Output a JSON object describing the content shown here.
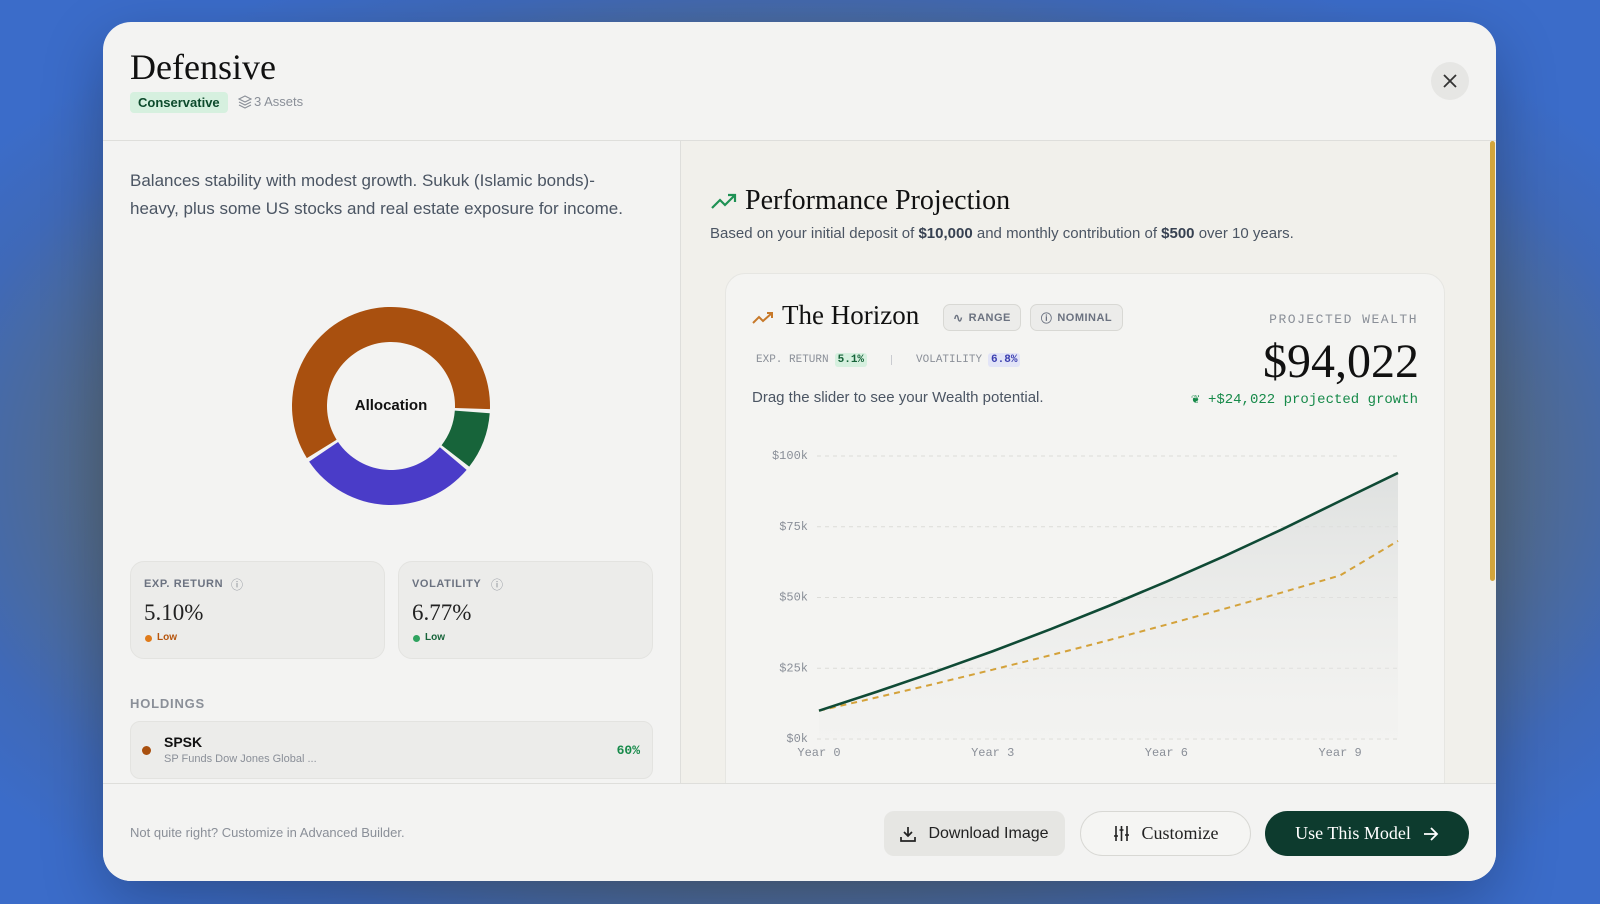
{
  "header": {
    "title": "Defensive",
    "badge": "Conservative",
    "assets": "3 Assets"
  },
  "description": "Balances stability with modest growth. Sukuk (Islamic bonds)-heavy, plus some US stocks and real estate exposure for income.",
  "metrics": [
    {
      "label": "EXP. RETURN",
      "value": "5.10%",
      "level": "Low"
    },
    {
      "label": "VOLATILITY",
      "value": "6.77%",
      "level": "Low"
    }
  ],
  "holdings": {
    "title": "HOLDINGS",
    "rows": [
      {
        "ticker": "SPSK",
        "name": "SP Funds Dow Jones Global ...",
        "weight": "60%"
      }
    ]
  },
  "projection": {
    "title": "Performance Projection",
    "subtitle": [
      "Based on your initial deposit of ",
      "$10,000",
      " and monthly contribution of ",
      "$500",
      " over 10 years."
    ],
    "tags": [
      "RANGE",
      "NOMINAL"
    ],
    "stats": [
      {
        "label": "EXP. RETURN",
        "value": "5.1%"
      },
      {
        "label": "VOLATILITY",
        "value": "6.8%"
      }
    ],
    "hint": "Drag the slider to see your Wealth potential.",
    "wealth_label": "PROJECTED WEALTH",
    "wealth": "$94,022",
    "growth": "+$24,022 projected growth"
  },
  "footer": {
    "note": "Not quite right? Customize in Advanced Builder.",
    "buttons": [
      "Download Image",
      "Customize",
      "Use This Model"
    ]
  },
  "chart_data": [
    {
      "type": "pie",
      "title": "Allocation",
      "values": [
        60,
        10,
        30
      ],
      "colors": [
        "#a9500f",
        "#17643a",
        "#4a3cc8"
      ]
    },
    {
      "type": "line",
      "title": "The Horizon",
      "x": [
        0,
        1,
        2,
        3,
        4,
        5,
        6,
        7,
        8,
        9,
        10
      ],
      "xlim": [
        0,
        10
      ],
      "xticks": [
        {
          "value": 0,
          "label": "Year 0"
        },
        {
          "value": 3,
          "label": "Year 3"
        },
        {
          "value": 6,
          "label": "Year 6"
        },
        {
          "value": 9,
          "label": "Year 9"
        }
      ],
      "ylim": [
        0,
        100000
      ],
      "yticks": [
        {
          "value": 0,
          "label": "$0k"
        },
        {
          "value": 25000,
          "label": "$25k"
        },
        {
          "value": 50000,
          "label": "$50k"
        },
        {
          "value": 75000,
          "label": "$75k"
        },
        {
          "value": 100000,
          "label": "$100k"
        }
      ],
      "grid": true,
      "series": [
        {
          "color": "#0f4a35",
          "values": [
            10000,
            16700,
            23700,
            31000,
            38800,
            47000,
            55600,
            64600,
            74100,
            84100,
            94000
          ]
        },
        {
          "color": "#d4a23a",
          "dashed": true,
          "values": [
            10000,
            14700,
            19500,
            24500,
            29600,
            34900,
            40400,
            46000,
            51800,
            57800,
            70000
          ]
        }
      ]
    }
  ]
}
